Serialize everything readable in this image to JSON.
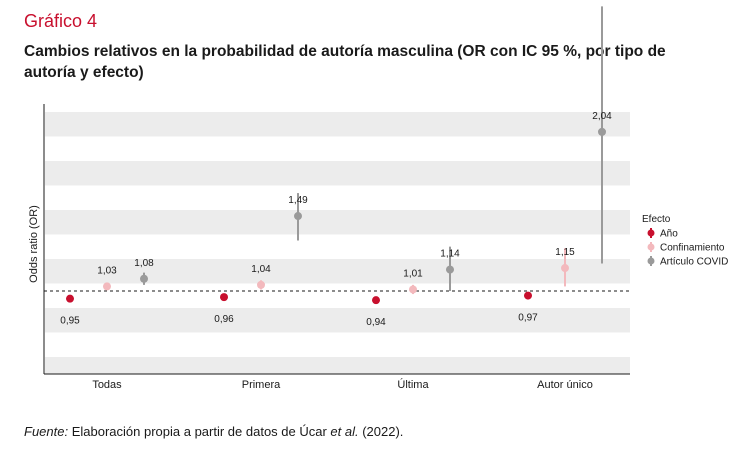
{
  "figure": {
    "label": "Gráfico 4",
    "title": "Cambios relativos en la probabilidad de autoría masculina (OR con IC 95 %, por tipo de autoría y efecto)"
  },
  "source": {
    "prefix": "Fuente:",
    "text1": " Elaboración propia a partir de datos de Úcar ",
    "em": "et al.",
    "text2": " (2022)."
  },
  "chart_data": {
    "type": "scatter",
    "title": "Cambios relativos en la probabilidad de autoría masculina (OR con IC 95 %, por tipo de autoría y efecto)",
    "xlabel": "",
    "ylabel": "Odds ratio (OR)",
    "ylim": [
      0.85,
      2.2
    ],
    "grid": true,
    "reference_line": 1.0,
    "categories": [
      "Todas",
      "Primera",
      "Última",
      "Autor único"
    ],
    "legend": {
      "title": "Efecto",
      "position": "right"
    },
    "series": [
      {
        "name": "Año",
        "color": "#c8102e",
        "values": [
          0.95,
          0.96,
          0.94,
          0.97
        ],
        "labels": [
          "0,95",
          "0,96",
          "0,94",
          "0,97"
        ],
        "ci": [
          [
            0.94,
            0.96
          ],
          [
            0.95,
            0.97
          ],
          [
            0.93,
            0.95
          ],
          [
            0.95,
            0.99
          ]
        ]
      },
      {
        "name": "Confinamiento",
        "color": "#f3b9bd",
        "values": [
          1.03,
          1.04,
          1.01,
          1.15
        ],
        "labels": [
          "1,03",
          "1,04",
          "1,01",
          "1,15"
        ],
        "ci": [
          [
            1.01,
            1.05
          ],
          [
            1.01,
            1.07
          ],
          [
            0.98,
            1.04
          ],
          [
            1.03,
            1.28
          ]
        ]
      },
      {
        "name": "Artículo COVID",
        "color": "#9a9a9a",
        "values": [
          1.08,
          1.49,
          1.14,
          2.04
        ],
        "labels": [
          "1,08",
          "1,49",
          "1,14",
          "2,04"
        ],
        "ci": [
          [
            1.04,
            1.12
          ],
          [
            1.33,
            1.64
          ],
          [
            1.0,
            1.29
          ],
          [
            1.18,
            2.86
          ]
        ]
      }
    ]
  }
}
